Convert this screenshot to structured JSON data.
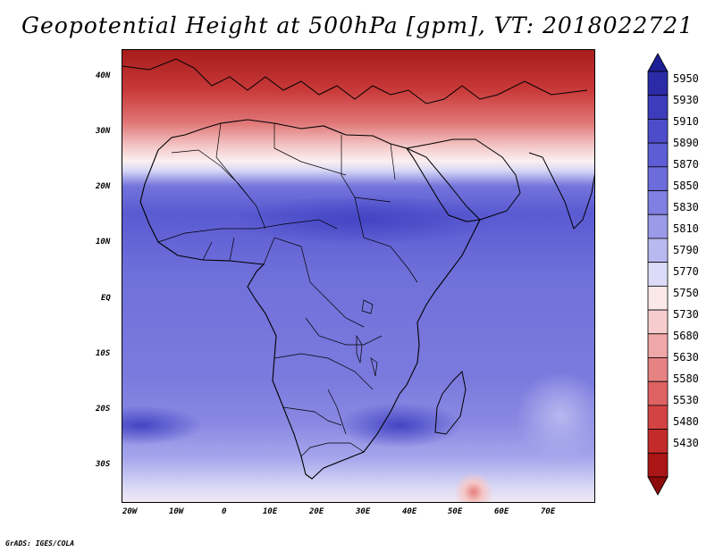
{
  "title": "Geopotential Height at 500hPa [gpm], VT: 2018022721",
  "credit": "GrADS: IGES/COLA",
  "map": {
    "variable": "500hPa geopotential height",
    "units": "gpm",
    "valid_time": "2018022721",
    "lon_range": [
      -20,
      80
    ],
    "lat_range": [
      -37,
      45
    ],
    "lat_ticks": [
      "40N",
      "30N",
      "20N",
      "10N",
      "EQ",
      "10S",
      "20S",
      "30S"
    ],
    "lon_ticks": [
      "20W",
      "10W",
      "0",
      "10E",
      "20E",
      "30E",
      "40E",
      "50E",
      "60E",
      "70E"
    ]
  },
  "colorbar": {
    "levels": [
      "5950",
      "5930",
      "5910",
      "5890",
      "5870",
      "5850",
      "5830",
      "5810",
      "5790",
      "5770",
      "5750",
      "5730",
      "5680",
      "5630",
      "5580",
      "5530",
      "5480",
      "5430"
    ],
    "colors": [
      "#1e1e96",
      "#2b2ba8",
      "#3c3cbc",
      "#4d4dcb",
      "#5d5dd6",
      "#6c6cdc",
      "#8080e2",
      "#9a9ae9",
      "#b9b9f1",
      "#dcdcf8",
      "#fbe9e9",
      "#f7cccc",
      "#f0a7a7",
      "#e78282",
      "#de6262",
      "#d44343",
      "#c42a2a",
      "#aa1515",
      "#8c0a0a"
    ]
  }
}
